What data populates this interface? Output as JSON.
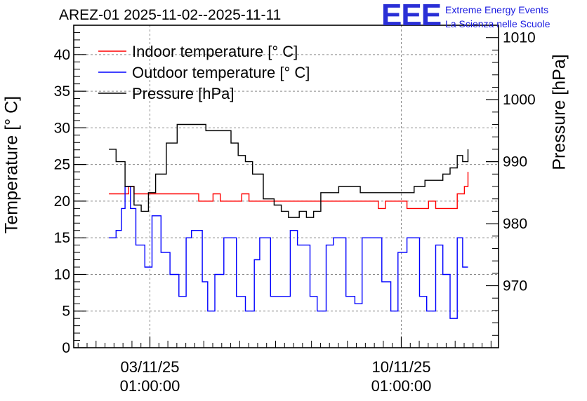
{
  "header": {
    "title": "AREZ-01 2025-11-02--2025-11-11",
    "logo_mark": "EEE",
    "logo_line1": "Extreme Energy Events",
    "logo_line2": "La Scienza nelle Scuole"
  },
  "chart_data": {
    "type": "line",
    "title": "AREZ-01 2025-11-02--2025-11-11",
    "ylabel_left": "Temperature [° C]",
    "ylabel_right": "Pressure [hPa]",
    "ylim_left": [
      0,
      44
    ],
    "ylim_right": [
      960,
      1012
    ],
    "yticks_left": [
      0,
      5,
      10,
      15,
      20,
      25,
      30,
      35,
      40
    ],
    "yticks_right": [
      970,
      980,
      990,
      1000,
      1010
    ],
    "xticks": [
      {
        "label_line1": "03/11/25",
        "label_line2": "01:00:00",
        "day": 3.0417
      },
      {
        "label_line1": "10/11/25",
        "label_line2": "01:00:00",
        "day": 10.0417
      }
    ],
    "xlim_days": [
      0.92,
      12.75
    ],
    "grid": true,
    "legend_position": "top-left",
    "series": [
      {
        "name": "Indoor temperature [° C]",
        "color": "#ff0000",
        "axis": "left",
        "x": [
          1.9,
          2.2,
          2.33,
          2.45,
          2.6,
          2.8,
          3.0,
          3.2,
          3.5,
          3.8,
          4.0,
          4.2,
          4.4,
          4.6,
          4.8,
          5.0,
          5.2,
          5.4,
          5.6,
          5.8,
          6.0,
          6.2,
          6.5,
          7.0,
          7.5,
          8.0,
          8.5,
          8.8,
          9.0,
          9.2,
          9.4,
          9.6,
          9.8,
          10.0,
          10.2,
          10.4,
          10.6,
          10.8,
          11.0,
          11.2,
          11.4,
          11.6,
          11.8,
          11.9
        ],
        "values": [
          21,
          21,
          21,
          22,
          21,
          21,
          21,
          21,
          21,
          21,
          21,
          21,
          20,
          20,
          21,
          20,
          20,
          20,
          21,
          20,
          20,
          20,
          20,
          20,
          20,
          20,
          20,
          20,
          20,
          20,
          19,
          20,
          20,
          20,
          19,
          19,
          19,
          20,
          19,
          19,
          19,
          21,
          22,
          24
        ]
      },
      {
        "name": "Outdoor temperature [° C]",
        "color": "#0000ff",
        "axis": "left",
        "x": [
          1.9,
          2.1,
          2.25,
          2.35,
          2.5,
          2.65,
          2.9,
          3.1,
          3.35,
          3.6,
          3.85,
          4.05,
          4.2,
          4.5,
          4.65,
          4.85,
          5.1,
          5.45,
          5.7,
          5.95,
          6.1,
          6.4,
          6.7,
          6.95,
          7.15,
          7.5,
          7.7,
          7.95,
          8.15,
          8.5,
          8.75,
          8.95,
          9.2,
          9.5,
          9.75,
          9.95,
          10.2,
          10.55,
          10.75,
          11.0,
          11.2,
          11.4,
          11.6,
          11.75,
          11.9
        ],
        "values": [
          15,
          16,
          19,
          22,
          19,
          14,
          11,
          18,
          13,
          10,
          7,
          15,
          16,
          9,
          5,
          10,
          15,
          7,
          5,
          12,
          15,
          7,
          7,
          16,
          14,
          7,
          5,
          14,
          15,
          7,
          6,
          15,
          15,
          9,
          5,
          13,
          15,
          7,
          5,
          14,
          10,
          4,
          15,
          11,
          11
        ]
      },
      {
        "name": "Pressure [hPa]",
        "color": "#000000",
        "axis": "right",
        "x": [
          1.9,
          2.1,
          2.35,
          2.6,
          2.8,
          3.0,
          3.2,
          3.5,
          3.8,
          4.2,
          4.6,
          5.0,
          5.3,
          5.5,
          5.7,
          5.9,
          6.2,
          6.5,
          6.7,
          6.9,
          7.2,
          7.4,
          7.6,
          7.8,
          8.0,
          8.3,
          8.6,
          8.9,
          9.2,
          9.5,
          9.8,
          10.1,
          10.4,
          10.7,
          11.0,
          11.2,
          11.4,
          11.6,
          11.75,
          11.9
        ],
        "values": [
          992,
          990,
          986,
          983,
          982,
          985,
          988,
          993,
          996,
          996,
          995,
          995,
          993,
          991,
          990,
          988,
          984,
          983,
          982,
          981,
          982,
          981,
          982,
          985,
          985,
          986,
          986,
          985,
          985,
          985,
          985,
          985,
          986,
          987,
          987,
          988,
          989,
          991,
          990,
          992
        ]
      }
    ]
  }
}
